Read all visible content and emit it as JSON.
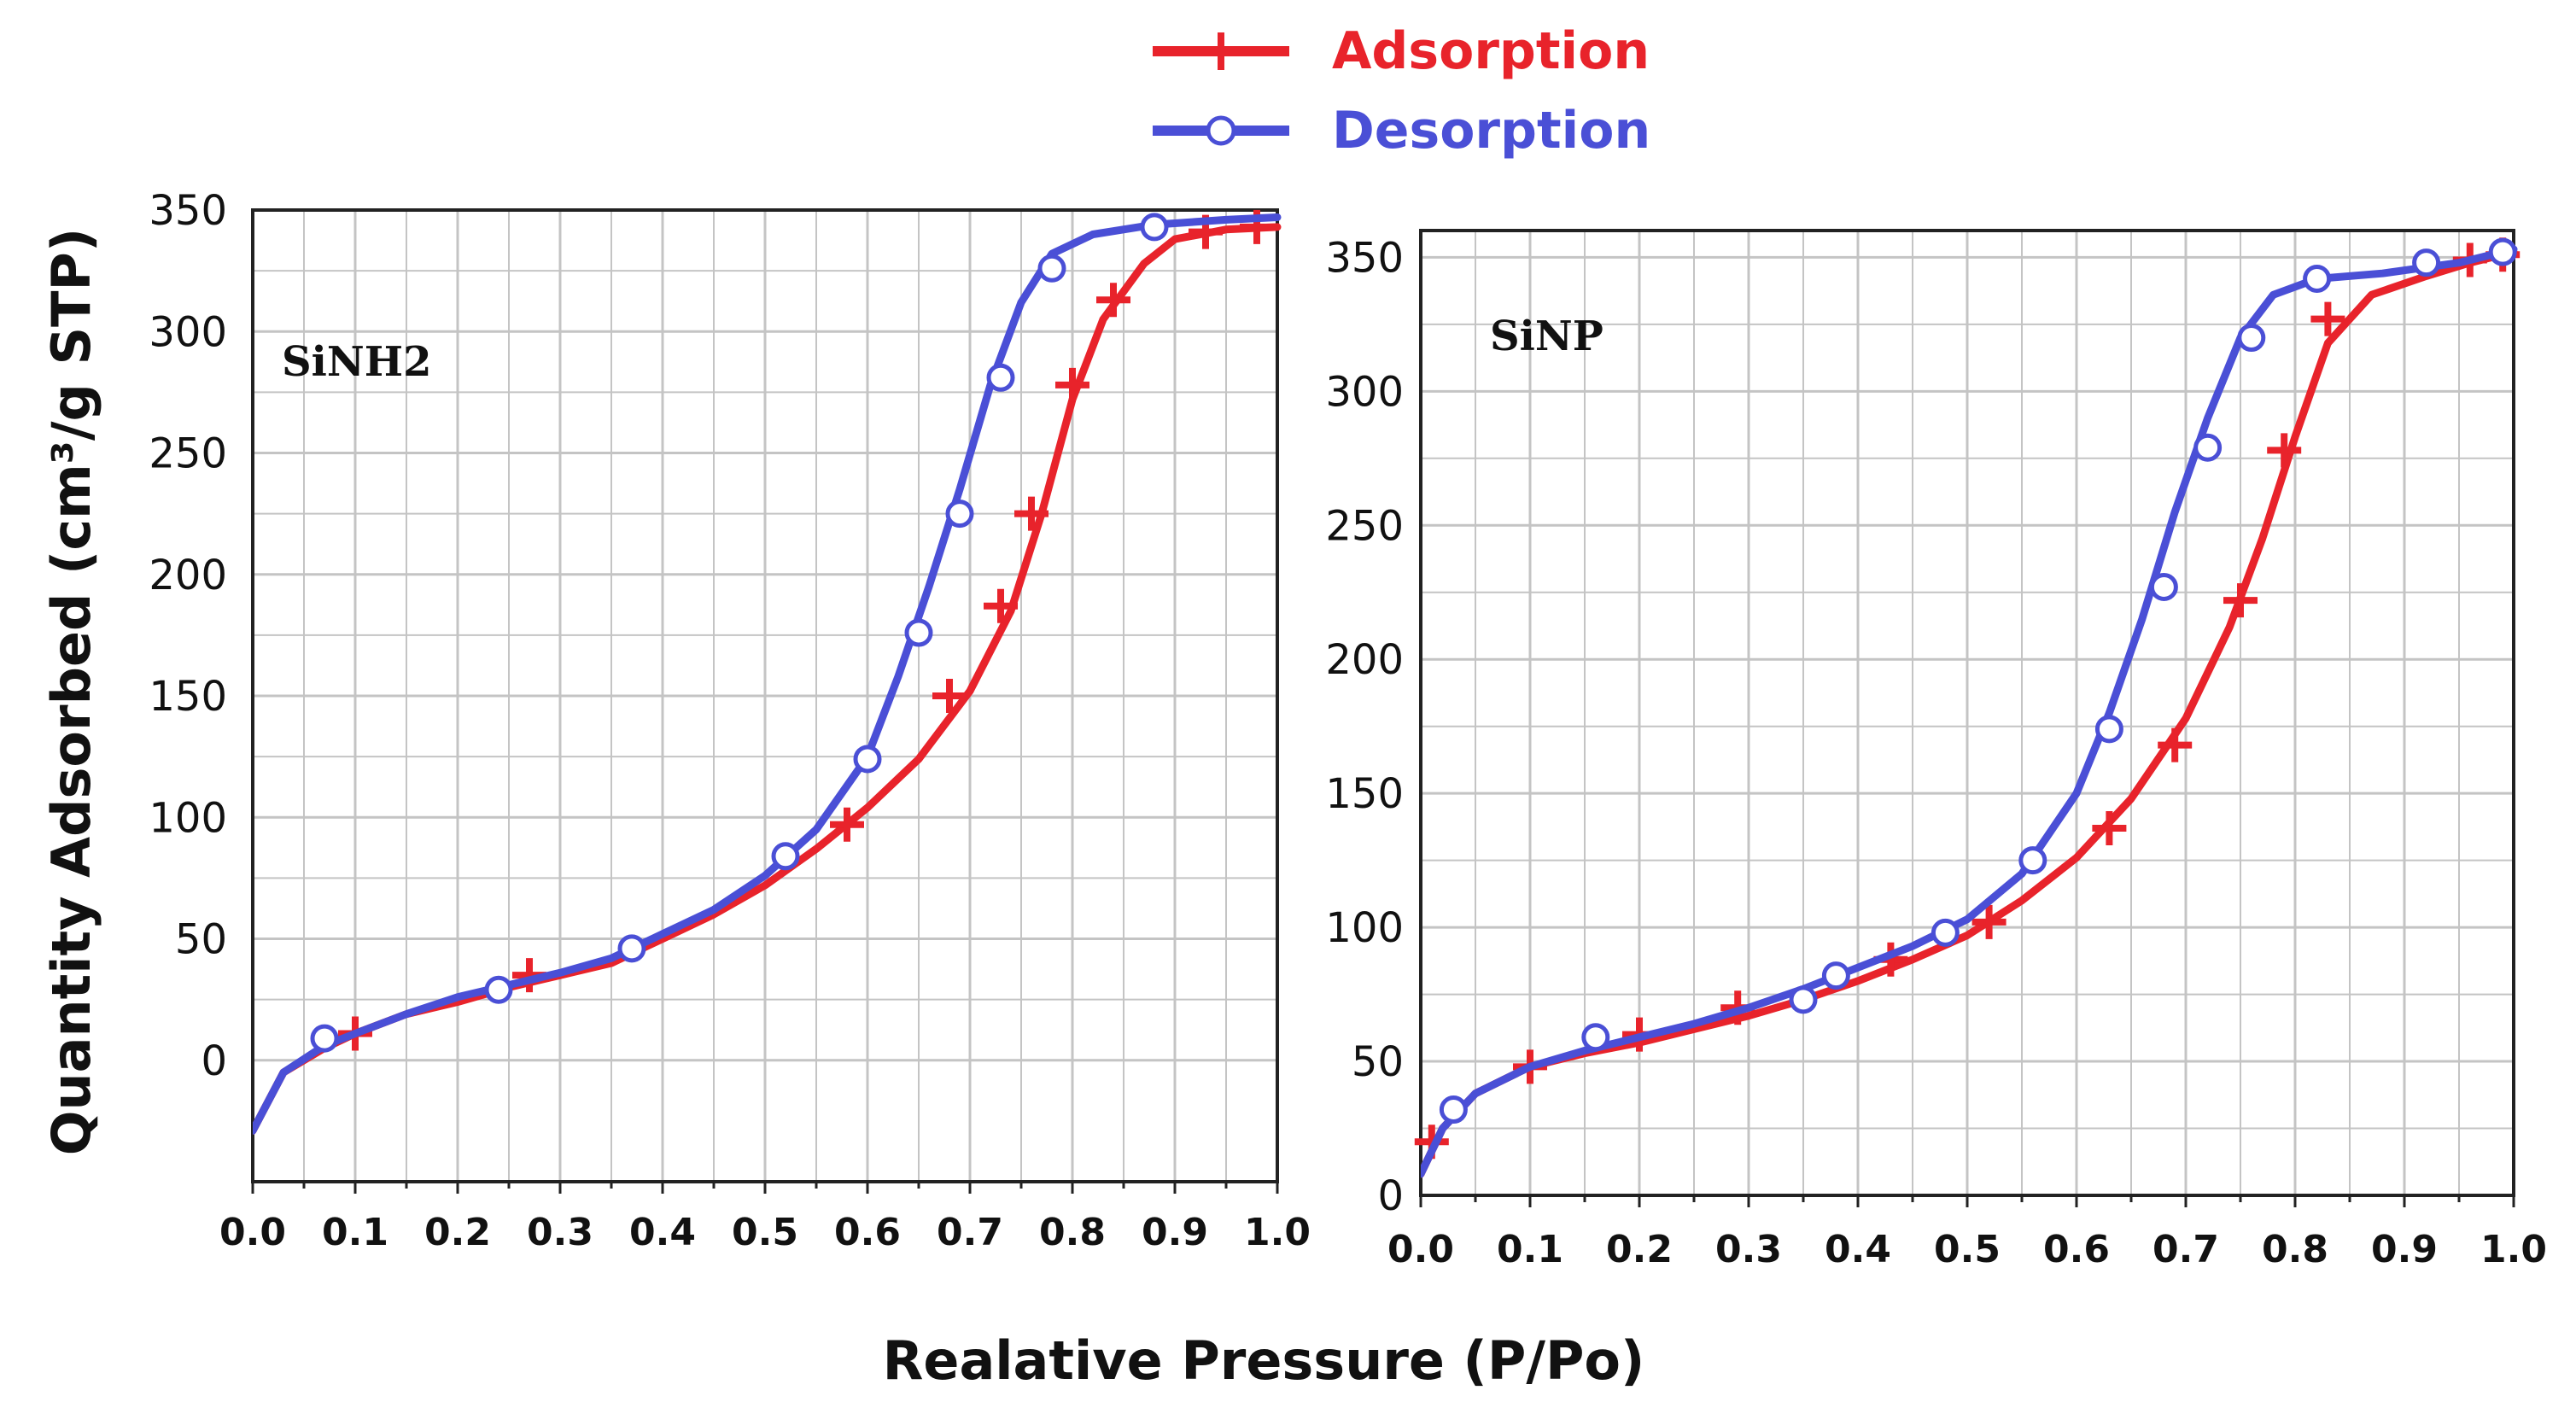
{
  "legend": {
    "adsorption": "Adsorption",
    "desorption": "Desorption"
  },
  "colors": {
    "adsorption": "#e8232b",
    "desorption": "#4a4fd6",
    "grid": "#c4c4c4",
    "frame": "#222222"
  },
  "axis_titles": {
    "x": "Realative Pressure (P/Po)",
    "y": "Quantity Adsorbed (cm³/g STP)"
  },
  "chart_data": [
    {
      "type": "line",
      "title": "SiNH2",
      "xlabel": "Realative Pressure (P/Po)",
      "ylabel": "Quantity Adsorbed (cm³/g STP)",
      "xlim": [
        0.0,
        1.0
      ],
      "ylim": [
        -50,
        350
      ],
      "x_ticks": [
        "0.0",
        "0.1",
        "0.2",
        "0.3",
        "0.4",
        "0.5",
        "0.6",
        "0.7",
        "0.8",
        "0.9",
        "1.0"
      ],
      "y_ticks": [
        {
          "value": 0,
          "label": "0"
        },
        {
          "value": 50,
          "label": "50"
        },
        {
          "value": 100,
          "label": "100"
        },
        {
          "value": 150,
          "label": "150"
        },
        {
          "value": 200,
          "label": "200"
        },
        {
          "value": 250,
          "label": "250"
        },
        {
          "value": 300,
          "label": "300"
        },
        {
          "value": 350,
          "label": "350"
        }
      ],
      "series": [
        {
          "name": "Adsorption",
          "curve": [
            [
              0.0,
              -29
            ],
            [
              0.03,
              -5
            ],
            [
              0.07,
              5
            ],
            [
              0.1,
              11
            ],
            [
              0.15,
              19
            ],
            [
              0.2,
              24
            ],
            [
              0.25,
              30
            ],
            [
              0.3,
              35
            ],
            [
              0.35,
              40
            ],
            [
              0.4,
              50
            ],
            [
              0.45,
              60
            ],
            [
              0.5,
              72
            ],
            [
              0.55,
              87
            ],
            [
              0.6,
              104
            ],
            [
              0.65,
              124
            ],
            [
              0.7,
              152
            ],
            [
              0.74,
              185
            ],
            [
              0.77,
              225
            ],
            [
              0.8,
              272
            ],
            [
              0.83,
              305
            ],
            [
              0.87,
              328
            ],
            [
              0.9,
              338
            ],
            [
              0.95,
              342
            ],
            [
              1.0,
              343
            ]
          ],
          "markers": [
            [
              0.1,
              11
            ],
            [
              0.27,
              35
            ],
            [
              0.58,
              97
            ],
            [
              0.68,
              150
            ],
            [
              0.73,
              187
            ],
            [
              0.76,
              225
            ],
            [
              0.8,
              278
            ],
            [
              0.84,
              313
            ],
            [
              0.93,
              341
            ],
            [
              0.98,
              343
            ]
          ]
        },
        {
          "name": "Desorption",
          "curve": [
            [
              0.0,
              -29
            ],
            [
              0.03,
              -5
            ],
            [
              0.07,
              6
            ],
            [
              0.1,
              11
            ],
            [
              0.15,
              19
            ],
            [
              0.2,
              26
            ],
            [
              0.25,
              31
            ],
            [
              0.3,
              36
            ],
            [
              0.35,
              42
            ],
            [
              0.4,
              52
            ],
            [
              0.45,
              62
            ],
            [
              0.5,
              76
            ],
            [
              0.55,
              95
            ],
            [
              0.6,
              125
            ],
            [
              0.63,
              158
            ],
            [
              0.66,
              195
            ],
            [
              0.69,
              235
            ],
            [
              0.72,
              278
            ],
            [
              0.75,
              312
            ],
            [
              0.78,
              332
            ],
            [
              0.82,
              340
            ],
            [
              0.88,
              344
            ],
            [
              0.95,
              346
            ],
            [
              1.0,
              347
            ]
          ],
          "markers": [
            [
              0.07,
              9
            ],
            [
              0.24,
              29
            ],
            [
              0.37,
              46
            ],
            [
              0.52,
              84
            ],
            [
              0.6,
              124
            ],
            [
              0.65,
              176
            ],
            [
              0.69,
              225
            ],
            [
              0.73,
              281
            ],
            [
              0.78,
              326
            ],
            [
              0.88,
              343
            ]
          ]
        }
      ]
    },
    {
      "type": "line",
      "title": "SiNP",
      "xlabel": "Realative Pressure (P/Po)",
      "ylabel": "Quantity Adsorbed (cm³/g STP)",
      "xlim": [
        0.0,
        1.0
      ],
      "ylim": [
        0,
        360
      ],
      "x_ticks": [
        "0.0",
        "0.1",
        "0.2",
        "0.3",
        "0.4",
        "0.5",
        "0.6",
        "0.7",
        "0.8",
        "0.9",
        "1.0"
      ],
      "y_ticks": [
        {
          "value": 0,
          "label": "0"
        },
        {
          "value": 50,
          "label": "50"
        },
        {
          "value": 100,
          "label": "100"
        },
        {
          "value": 150,
          "label": "150"
        },
        {
          "value": 200,
          "label": "200"
        },
        {
          "value": 250,
          "label": "250"
        },
        {
          "value": 300,
          "label": "300"
        },
        {
          "value": 350,
          "label": "350"
        }
      ],
      "series": [
        {
          "name": "Adsorption",
          "curve": [
            [
              0.0,
              8
            ],
            [
              0.02,
              25
            ],
            [
              0.05,
              38
            ],
            [
              0.1,
              48
            ],
            [
              0.15,
              53
            ],
            [
              0.2,
              57
            ],
            [
              0.25,
              62
            ],
            [
              0.3,
              67
            ],
            [
              0.35,
              73
            ],
            [
              0.4,
              80
            ],
            [
              0.45,
              88
            ],
            [
              0.5,
              97
            ],
            [
              0.55,
              110
            ],
            [
              0.6,
              126
            ],
            [
              0.65,
              148
            ],
            [
              0.7,
              178
            ],
            [
              0.74,
              212
            ],
            [
              0.77,
              245
            ],
            [
              0.8,
              283
            ],
            [
              0.83,
              318
            ],
            [
              0.87,
              336
            ],
            [
              0.92,
              343
            ],
            [
              0.96,
              348
            ],
            [
              1.0,
              352
            ]
          ],
          "markers": [
            [
              0.01,
              20
            ],
            [
              0.1,
              48
            ],
            [
              0.2,
              60
            ],
            [
              0.29,
              70
            ],
            [
              0.43,
              88
            ],
            [
              0.52,
              102
            ],
            [
              0.63,
              137
            ],
            [
              0.69,
              168
            ],
            [
              0.75,
              222
            ],
            [
              0.79,
              278
            ],
            [
              0.83,
              327
            ],
            [
              0.96,
              349
            ],
            [
              0.99,
              351
            ]
          ]
        },
        {
          "name": "Desorption",
          "curve": [
            [
              0.0,
              8
            ],
            [
              0.02,
              25
            ],
            [
              0.05,
              38
            ],
            [
              0.1,
              48
            ],
            [
              0.15,
              54
            ],
            [
              0.2,
              59
            ],
            [
              0.25,
              64
            ],
            [
              0.3,
              70
            ],
            [
              0.35,
              77
            ],
            [
              0.4,
              85
            ],
            [
              0.45,
              93
            ],
            [
              0.5,
              103
            ],
            [
              0.55,
              120
            ],
            [
              0.6,
              150
            ],
            [
              0.63,
              180
            ],
            [
              0.66,
              215
            ],
            [
              0.69,
              255
            ],
            [
              0.72,
              290
            ],
            [
              0.75,
              320
            ],
            [
              0.78,
              336
            ],
            [
              0.82,
              342
            ],
            [
              0.88,
              344
            ],
            [
              0.95,
              348
            ],
            [
              1.0,
              353
            ]
          ],
          "markers": [
            [
              0.03,
              32
            ],
            [
              0.16,
              59
            ],
            [
              0.35,
              73
            ],
            [
              0.38,
              82
            ],
            [
              0.48,
              98
            ],
            [
              0.56,
              125
            ],
            [
              0.63,
              174
            ],
            [
              0.68,
              227
            ],
            [
              0.72,
              279
            ],
            [
              0.76,
              320
            ],
            [
              0.82,
              342
            ],
            [
              0.92,
              348
            ],
            [
              0.99,
              352
            ]
          ]
        }
      ]
    }
  ]
}
